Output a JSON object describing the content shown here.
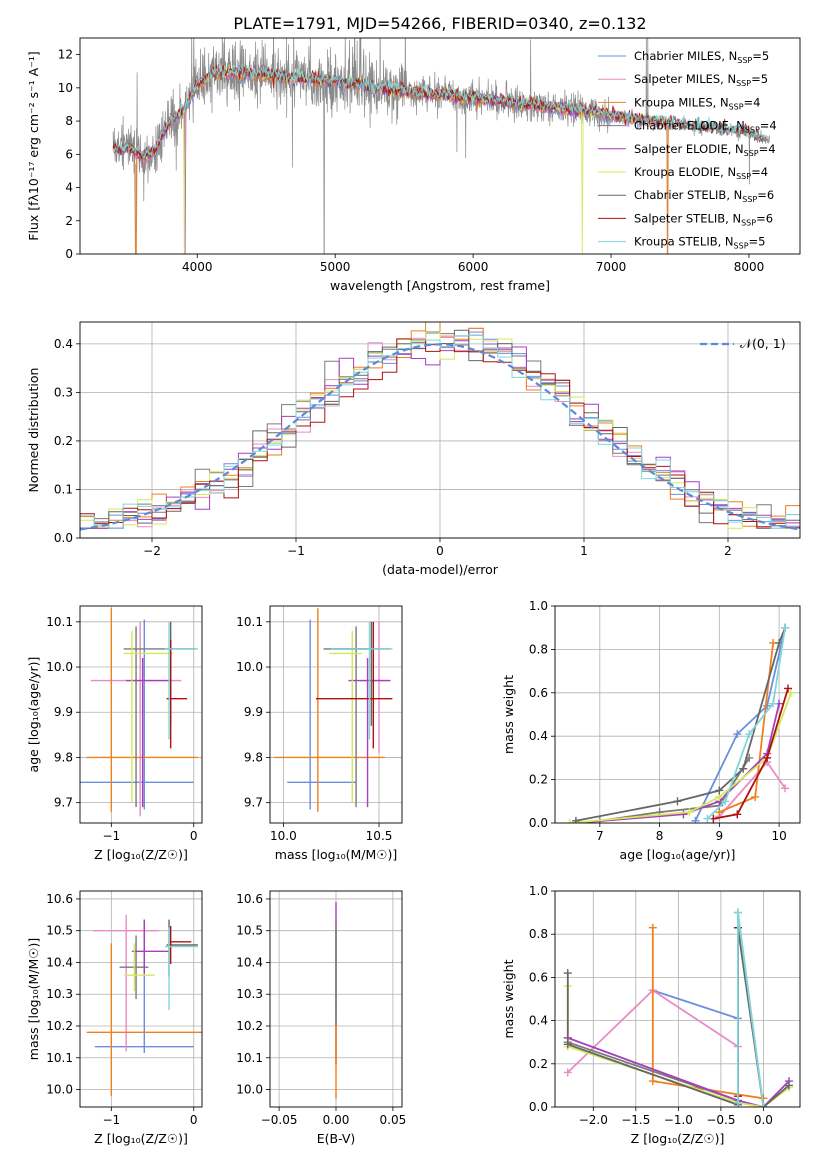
{
  "title": "PLATE=1791, MJD=54266, FIBERID=0340, z=0.132",
  "colors": {
    "chab_miles": "#6a8fdd",
    "salp_miles": "#e98bc4",
    "krou_miles": "#f07f1e",
    "chab_elodie": "#7a7a7a",
    "salp_elodie": "#a63fbf",
    "krou_elodie": "#d4e85a",
    "chab_stelib": "#666666",
    "salp_stelib": "#b01010",
    "krou_stelib": "#7fd6db",
    "gauss": "#5b8ad9",
    "grid": "#b0b0b0"
  },
  "chart_data": [
    {
      "id": "spectrum",
      "type": "line",
      "xlabel": "wavelength [Angstrom, rest frame]",
      "ylabel": "Flux [fλ10⁻¹⁷ erg cm⁻² s⁻¹ A⁻¹]",
      "xlim": [
        3150,
        8370
      ],
      "ylim": [
        0,
        13
      ],
      "xticks": [
        4000,
        5000,
        6000,
        7000,
        8000
      ],
      "yticks": [
        0,
        2,
        4,
        6,
        8,
        10,
        12
      ],
      "grid": false,
      "legend_position": "right",
      "continuum": {
        "x": [
          3400,
          3500,
          3600,
          3700,
          3800,
          3900,
          4000,
          4100,
          4300,
          4500,
          4700,
          5000,
          5300,
          5600,
          6000,
          6400,
          6800,
          7200,
          7600,
          8000,
          8100
        ],
        "y": [
          6.3,
          6.4,
          5.8,
          6.3,
          8.0,
          8.6,
          10.2,
          10.8,
          10.9,
          10.8,
          10.6,
          10.4,
          10.0,
          9.7,
          9.4,
          9.0,
          8.6,
          8.1,
          7.7,
          7.3,
          6.9
        ]
      },
      "legend": [
        {
          "label": "Chabrier MILES, N",
          "sub": "SSP",
          "tail": "=5",
          "color_key": "chab_miles"
        },
        {
          "label": "Salpeter MILES, N",
          "sub": "SSP",
          "tail": "=5",
          "color_key": "salp_miles"
        },
        {
          "label": "Kroupa MILES, N",
          "sub": "SSP",
          "tail": "=4",
          "color_key": "krou_miles"
        },
        {
          "label": "Chabrier ELODIE, N",
          "sub": "SSP",
          "tail": "=4",
          "color_key": "chab_elodie"
        },
        {
          "label": "Salpeter ELODIE, N",
          "sub": "SSP",
          "tail": "=4",
          "color_key": "salp_elodie"
        },
        {
          "label": "Kroupa ELODIE, N",
          "sub": "SSP",
          "tail": "=4",
          "color_key": "krou_elodie"
        },
        {
          "label": "Chabrier STELIB, N",
          "sub": "SSP",
          "tail": "=6",
          "color_key": "chab_stelib"
        },
        {
          "label": "Salpeter STELIB, N",
          "sub": "SSP",
          "tail": "=6",
          "color_key": "salp_stelib"
        },
        {
          "label": "Kroupa STELIB, N",
          "sub": "SSP",
          "tail": "=5",
          "color_key": "krou_stelib"
        }
      ]
    },
    {
      "id": "residuals",
      "type": "histogram",
      "xlabel": "(data-model)/error",
      "ylabel": "Normed distribution",
      "xlim": [
        -2.5,
        2.5
      ],
      "ylim": [
        0,
        0.445
      ],
      "xticks": [
        -2,
        -1,
        0,
        1,
        2
      ],
      "yticks": [
        0.0,
        0.1,
        0.2,
        0.3,
        0.4
      ],
      "grid": true,
      "legend": [
        {
          "label": "𝒩(0, 1)",
          "style": "dashed"
        }
      ],
      "legend_position": "top-right"
    },
    {
      "id": "age_vs_Z",
      "type": "errorbar",
      "xlabel": "Z [log₁₀(Z/Z☉)]",
      "ylabel": "age  [log₁₀(age/yr)]",
      "xlim": [
        -1.38,
        0.1
      ],
      "ylim": [
        9.655,
        10.135
      ],
      "xticks": [
        -1,
        0
      ],
      "yticks": [
        9.7,
        9.8,
        9.9,
        10.0,
        10.1
      ],
      "grid": true,
      "points": [
        {
          "c": "chab_miles",
          "x": -0.6,
          "xe": [
            0.85,
            0.6
          ],
          "y": 9.745,
          "ye": [
            0.06,
            0.36
          ]
        },
        {
          "c": "salp_miles",
          "x": -0.65,
          "xe": [
            0.6,
            0.5
          ],
          "y": 9.97,
          "ye": [
            0.3,
            0.13
          ]
        },
        {
          "c": "krou_miles",
          "x": -1.0,
          "xe": [
            0.3,
            1.05
          ],
          "y": 9.8,
          "ye": [
            0.12,
            0.33
          ]
        },
        {
          "c": "chab_elodie",
          "x": -0.7,
          "xe": [
            0.15,
            0.45
          ],
          "y": 10.04,
          "ye": [
            0.35,
            0.05
          ]
        },
        {
          "c": "salp_elodie",
          "x": -0.62,
          "xe": [
            0.2,
            0.35
          ],
          "y": 9.97,
          "ye": [
            0.28,
            0.05
          ]
        },
        {
          "c": "krou_elodie",
          "x": -0.75,
          "xe": [
            0.1,
            0.5
          ],
          "y": 10.03,
          "ye": [
            0.33,
            0.05
          ]
        },
        {
          "c": "chab_stelib",
          "x": -0.28,
          "xe": [
            0.05,
            0.3
          ],
          "y": 10.04,
          "ye": [
            0.17,
            0.06
          ]
        },
        {
          "c": "salp_stelib",
          "x": -0.28,
          "xe": [
            0.05,
            0.2
          ],
          "y": 9.93,
          "ye": [
            0.11,
            0.13
          ]
        },
        {
          "c": "krou_stelib",
          "x": -0.3,
          "xe": [
            0.05,
            0.35
          ],
          "y": 10.04,
          "ye": [
            0.2,
            0.06
          ]
        }
      ]
    },
    {
      "id": "age_vs_mass",
      "type": "errorbar",
      "xlabel": "mass [log₁₀(M/M☉)]",
      "ylabel": "",
      "xlim": [
        9.93,
        10.62
      ],
      "ylim": [
        9.655,
        10.135
      ],
      "xticks": [
        10.0,
        10.5
      ],
      "yticks": [
        9.7,
        9.8,
        9.9,
        10.0,
        10.1
      ],
      "grid": true,
      "points": [
        {
          "c": "chab_miles",
          "x": 10.14,
          "xe": [
            0.12,
            0.24
          ],
          "y": 9.745,
          "ye": [
            0.06,
            0.36
          ]
        },
        {
          "c": "salp_miles",
          "x": 10.5,
          "xe": [
            0.1,
            0.05
          ],
          "y": 9.97,
          "ye": [
            0.16,
            0.13
          ]
        },
        {
          "c": "krou_miles",
          "x": 10.18,
          "xe": [
            0.23,
            0.35
          ],
          "y": 9.8,
          "ye": [
            0.12,
            0.33
          ]
        },
        {
          "c": "chab_elodie",
          "x": 10.38,
          "xe": [
            0.17,
            0.08
          ],
          "y": 10.04,
          "ye": [
            0.35,
            0.05
          ]
        },
        {
          "c": "salp_elodie",
          "x": 10.44,
          "xe": [
            0.1,
            0.12
          ],
          "y": 9.97,
          "ye": [
            0.28,
            0.05
          ]
        },
        {
          "c": "krou_elodie",
          "x": 10.36,
          "xe": [
            0.12,
            0.05
          ],
          "y": 10.03,
          "ye": [
            0.33,
            0.05
          ]
        },
        {
          "c": "chab_stelib",
          "x": 10.46,
          "xe": [
            0.2,
            0.1
          ],
          "y": 10.04,
          "ye": [
            0.17,
            0.06
          ]
        },
        {
          "c": "salp_stelib",
          "x": 10.47,
          "xe": [
            0.3,
            0.1
          ],
          "y": 9.93,
          "ye": [
            0.11,
            0.17
          ]
        },
        {
          "c": "krou_stelib",
          "x": 10.45,
          "xe": [
            0.2,
            0.12
          ],
          "y": 10.04,
          "ye": [
            0.2,
            0.06
          ]
        }
      ]
    },
    {
      "id": "weight_vs_age",
      "type": "line",
      "xlabel": "age  [log₁₀(age/yr)]",
      "ylabel": "mass weight",
      "xlim": [
        6.25,
        10.35
      ],
      "ylim": [
        0,
        1.0
      ],
      "xticks": [
        7,
        8,
        9,
        10
      ],
      "yticks": [
        0.0,
        0.2,
        0.4,
        0.6,
        0.8,
        1.0
      ],
      "grid": true,
      "series": [
        {
          "c": "chab_miles",
          "x": [
            8.6,
            9.3,
            9.8,
            10.1
          ],
          "y": [
            0.01,
            0.41,
            0.54,
            0.9
          ]
        },
        {
          "c": "salp_miles",
          "x": [
            9.0,
            9.8,
            10.1
          ],
          "y": [
            0.03,
            0.28,
            0.16
          ]
        },
        {
          "c": "krou_miles",
          "x": [
            9.0,
            9.6,
            9.9
          ],
          "y": [
            0.05,
            0.12,
            0.83
          ]
        },
        {
          "c": "chab_elodie",
          "x": [
            7.0,
            8.0,
            9.0,
            9.5
          ],
          "y": [
            0.01,
            0.05,
            0.08,
            0.3
          ]
        },
        {
          "c": "salp_elodie",
          "x": [
            6.6,
            8.4,
            9.0,
            9.8,
            10.0
          ],
          "y": [
            0.0,
            0.04,
            0.1,
            0.32,
            0.55
          ]
        },
        {
          "c": "krou_elodie",
          "x": [
            6.5,
            8.5,
            9.0,
            9.8,
            10.2
          ],
          "y": [
            0.0,
            0.05,
            0.12,
            0.3,
            0.6
          ]
        },
        {
          "c": "chab_stelib",
          "x": [
            6.6,
            8.3,
            9.0,
            9.4,
            10.0,
            10.1
          ],
          "y": [
            0.01,
            0.1,
            0.15,
            0.25,
            0.83,
            0.9
          ]
        },
        {
          "c": "salp_stelib",
          "x": [
            8.9,
            9.3,
            9.8,
            10.15
          ],
          "y": [
            0.02,
            0.04,
            0.3,
            0.62
          ]
        },
        {
          "c": "krou_stelib",
          "x": [
            8.8,
            9.1,
            9.5,
            9.9,
            10.1
          ],
          "y": [
            0.02,
            0.1,
            0.41,
            0.55,
            0.9
          ]
        }
      ]
    },
    {
      "id": "mass_vs_Z",
      "type": "errorbar",
      "xlabel": "Z [log₁₀(Z/Z☉)]",
      "ylabel": "mass [log₁₀(M/M☉)]",
      "xlim": [
        -1.38,
        0.1
      ],
      "ylim": [
        9.945,
        10.625
      ],
      "xticks": [
        -1,
        0
      ],
      "yticks": [
        10.0,
        10.1,
        10.2,
        10.3,
        10.4,
        10.5,
        10.6
      ],
      "grid": true,
      "points": [
        {
          "c": "chab_miles",
          "x": -0.6,
          "xe": [
            0.6,
            0.6
          ],
          "y": 10.135,
          "ye": [
            0.02,
            0.4
          ]
        },
        {
          "c": "salp_miles",
          "x": -0.82,
          "xe": [
            0.4,
            0.4
          ],
          "y": 10.5,
          "ye": [
            0.38,
            0.05
          ]
        },
        {
          "c": "krou_miles",
          "x": -1.0,
          "xe": [
            0.3,
            1.1
          ],
          "y": 10.18,
          "ye": [
            0.2,
            0.28
          ]
        },
        {
          "c": "chab_elodie",
          "x": -0.7,
          "xe": [
            0.2,
            0.15
          ],
          "y": 10.385,
          "ye": [
            0.1,
            0.1
          ]
        },
        {
          "c": "salp_elodie",
          "x": -0.6,
          "xe": [
            0.15,
            0.3
          ],
          "y": 10.435,
          "ye": [
            0.07,
            0.1
          ]
        },
        {
          "c": "krou_elodie",
          "x": -0.72,
          "xe": [
            0.12,
            0.25
          ],
          "y": 10.36,
          "ye": [
            0.05,
            0.1
          ]
        },
        {
          "c": "chab_stelib",
          "x": -0.3,
          "xe": [
            0.03,
            0.35
          ],
          "y": 10.455,
          "ye": [
            0.1,
            0.08
          ]
        },
        {
          "c": "salp_stelib",
          "x": -0.28,
          "xe": [
            0.02,
            0.25
          ],
          "y": 10.465,
          "ye": [
            0.07,
            0.05
          ]
        },
        {
          "c": "krou_stelib",
          "x": -0.3,
          "xe": [
            0.05,
            0.35
          ],
          "y": 10.45,
          "ye": [
            0.2,
            0.06
          ]
        }
      ]
    },
    {
      "id": "mass_vs_EBV",
      "type": "errorbar",
      "xlabel": "E(B-V)",
      "ylabel": "",
      "xlim": [
        -0.058,
        0.058
      ],
      "ylim": [
        9.945,
        10.625
      ],
      "xticks": [
        -0.05,
        0.0,
        0.05
      ],
      "yticks": [
        10.0,
        10.1,
        10.2,
        10.3,
        10.4,
        10.5,
        10.6
      ],
      "grid": true,
      "points": [
        {
          "c": "salp_elodie",
          "x": 0.0,
          "xe": [
            0,
            0
          ],
          "y": 10.45,
          "ye": [
            0.2,
            0.14
          ]
        },
        {
          "c": "salp_stelib",
          "x": 0.0,
          "xe": [
            0,
            0
          ],
          "y": 10.3,
          "ye": [
            0.22,
            0.2
          ]
        },
        {
          "c": "krou_miles",
          "x": 0.0,
          "xe": [
            0,
            0
          ],
          "y": 10.18,
          "ye": [
            0.21,
            0.1
          ]
        },
        {
          "c": "krou_stelib",
          "x": 0.0,
          "xe": [
            0,
            0
          ],
          "y": 10.4,
          "ye": [
            0.2,
            0.1
          ]
        },
        {
          "c": "chab_elodie",
          "x": 0.0,
          "xe": [
            0,
            0
          ],
          "y": 10.38,
          "ye": [
            0.18,
            0.15
          ]
        }
      ]
    },
    {
      "id": "weight_vs_Z",
      "type": "line",
      "xlabel": "Z [log₁₀(Z/Z☉)]",
      "ylabel": "mass weight",
      "xlim": [
        -2.45,
        0.43
      ],
      "ylim": [
        0,
        1.0
      ],
      "xticks": [
        -2.0,
        -1.5,
        -1.0,
        -0.5,
        0.0
      ],
      "yticks": [
        0.0,
        0.2,
        0.4,
        0.6,
        0.8,
        1.0
      ],
      "grid": true,
      "series": [
        {
          "c": "chab_miles",
          "x": [
            -1.3,
            -0.3
          ],
          "y": [
            0.54,
            0.41
          ]
        },
        {
          "c": "salp_miles",
          "x": [
            -2.3,
            -1.3,
            -0.3
          ],
          "y": [
            0.16,
            0.54,
            0.28
          ]
        },
        {
          "c": "krou_miles",
          "x": [
            -1.3,
            -1.3,
            0.0
          ],
          "y": [
            0.83,
            0.12,
            0.04
          ]
        },
        {
          "c": "chab_elodie",
          "x": [
            -2.3,
            -0.3,
            -0.3,
            0.0
          ],
          "y": [
            0.3,
            0.03,
            0.9,
            0.0
          ]
        },
        {
          "c": "salp_elodie",
          "x": [
            -2.3,
            -0.3,
            0.0,
            0.3
          ],
          "y": [
            0.32,
            0.03,
            0.0,
            0.12
          ]
        },
        {
          "c": "krou_elodie",
          "x": [
            -2.3,
            -2.3,
            -0.3,
            0.0,
            0.3
          ],
          "y": [
            0.56,
            0.28,
            0.02,
            0.0,
            0.09
          ]
        },
        {
          "c": "chab_stelib",
          "x": [
            -2.3,
            -2.3,
            -0.3,
            -0.3,
            0.0,
            0.3
          ],
          "y": [
            0.62,
            0.29,
            0.01,
            0.83,
            0.0,
            0.1
          ]
        },
        {
          "c": "salp_stelib",
          "x": [
            -0.3,
            -0.3
          ],
          "y": [
            0.05,
            0.83
          ]
        },
        {
          "c": "krou_stelib",
          "x": [
            -0.3,
            -0.3,
            0.0
          ],
          "y": [
            0.02,
            0.9,
            0.0
          ]
        }
      ]
    }
  ]
}
